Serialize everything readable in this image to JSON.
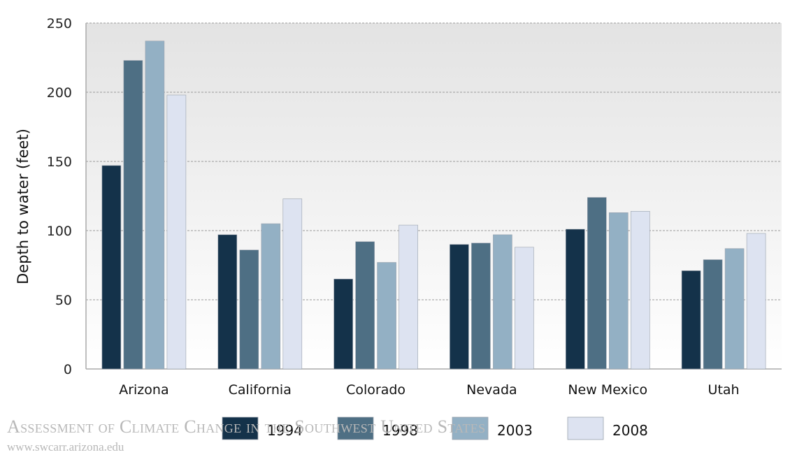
{
  "watermark": {
    "title": "Assessment of Climate Change in the Southwest United States",
    "url": "www.swcarr.arizona.edu"
  },
  "colors": {
    "1994": "#14324a",
    "1998": "#4e6f84",
    "2003": "#93b0c4",
    "2008": "#dde3f1",
    "plot_bg_top": "#e3e3e3",
    "plot_bg_bottom": "#ffffff",
    "grid": "#9a9a9a"
  },
  "chart_data": {
    "type": "bar",
    "title": "",
    "xlabel": "",
    "ylabel": "Depth to water (feet)",
    "ylim": [
      0,
      250
    ],
    "yticks": [
      0,
      50,
      100,
      150,
      200,
      250
    ],
    "grid": true,
    "legend_position": "bottom",
    "categories": [
      "Arizona",
      "California",
      "Colorado",
      "Nevada",
      "New Mexico",
      "Utah"
    ],
    "series": [
      {
        "name": "1994",
        "values": [
          147,
          97,
          65,
          90,
          101,
          71
        ]
      },
      {
        "name": "1998",
        "values": [
          223,
          86,
          92,
          91,
          124,
          79
        ]
      },
      {
        "name": "2003",
        "values": [
          237,
          105,
          77,
          97,
          113,
          87
        ]
      },
      {
        "name": "2008",
        "values": [
          198,
          123,
          104,
          88,
          114,
          98
        ]
      }
    ]
  }
}
